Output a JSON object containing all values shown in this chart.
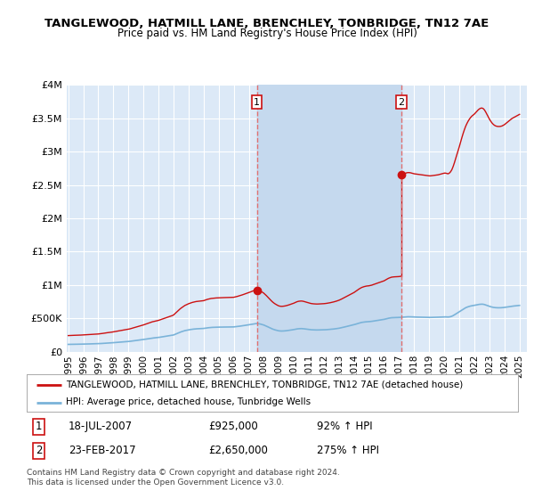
{
  "title": "TANGLEWOOD, HATMILL LANE, BRENCHLEY, TONBRIDGE, TN12 7AE",
  "subtitle": "Price paid vs. HM Land Registry's House Price Index (HPI)",
  "background_color": "#ffffff",
  "plot_bg_color": "#dce9f7",
  "shade_color": "#c5d9ee",
  "grid_color": "#ffffff",
  "ylim": [
    0,
    4000000
  ],
  "yticks": [
    0,
    500000,
    1000000,
    1500000,
    2000000,
    2500000,
    3000000,
    3500000,
    4000000
  ],
  "sale1_date": 2007.54,
  "sale1_price": 925000,
  "sale2_date": 2017.15,
  "sale2_price": 2650000,
  "legend_line1": "TANGLEWOOD, HATMILL LANE, BRENCHLEY, TONBRIDGE, TN12 7AE (detached house)",
  "legend_line2": "HPI: Average price, detached house, Tunbridge Wells",
  "hpi_color": "#7ab3d9",
  "price_color": "#cc1111",
  "vline_color": "#e07070",
  "footer": "Contains HM Land Registry data © Crown copyright and database right 2024.\nThis data is licensed under the Open Government Licence v3.0.",
  "hpi_data": [
    [
      1995.0,
      111000
    ],
    [
      1995.083,
      111500
    ],
    [
      1995.167,
      112000
    ],
    [
      1995.25,
      112200
    ],
    [
      1995.333,
      112500
    ],
    [
      1995.417,
      113000
    ],
    [
      1995.5,
      113200
    ],
    [
      1995.583,
      113500
    ],
    [
      1995.667,
      114000
    ],
    [
      1995.75,
      114200
    ],
    [
      1995.833,
      114500
    ],
    [
      1995.917,
      115000
    ],
    [
      1996.0,
      115500
    ],
    [
      1996.083,
      116000
    ],
    [
      1996.167,
      116500
    ],
    [
      1996.25,
      117000
    ],
    [
      1996.333,
      117500
    ],
    [
      1996.417,
      118000
    ],
    [
      1996.5,
      118500
    ],
    [
      1996.583,
      119000
    ],
    [
      1996.667,
      119500
    ],
    [
      1996.75,
      120000
    ],
    [
      1996.833,
      120500
    ],
    [
      1996.917,
      121000
    ],
    [
      1997.0,
      122000
    ],
    [
      1997.083,
      123000
    ],
    [
      1997.167,
      124000
    ],
    [
      1997.25,
      125000
    ],
    [
      1997.333,
      126500
    ],
    [
      1997.417,
      128000
    ],
    [
      1997.5,
      129000
    ],
    [
      1997.583,
      130500
    ],
    [
      1997.667,
      131500
    ],
    [
      1997.75,
      133000
    ],
    [
      1997.833,
      134000
    ],
    [
      1997.917,
      135000
    ],
    [
      1998.0,
      136500
    ],
    [
      1998.083,
      138000
    ],
    [
      1998.167,
      139500
    ],
    [
      1998.25,
      141000
    ],
    [
      1998.333,
      142500
    ],
    [
      1998.417,
      144000
    ],
    [
      1998.5,
      145000
    ],
    [
      1998.583,
      146500
    ],
    [
      1998.667,
      148000
    ],
    [
      1998.75,
      149500
    ],
    [
      1998.833,
      151000
    ],
    [
      1998.917,
      152500
    ],
    [
      1999.0,
      154000
    ],
    [
      1999.083,
      156500
    ],
    [
      1999.167,
      159000
    ],
    [
      1999.25,
      161500
    ],
    [
      1999.333,
      164000
    ],
    [
      1999.417,
      166500
    ],
    [
      1999.5,
      169000
    ],
    [
      1999.583,
      171500
    ],
    [
      1999.667,
      174000
    ],
    [
      1999.75,
      176500
    ],
    [
      1999.833,
      179000
    ],
    [
      1999.917,
      181500
    ],
    [
      2000.0,
      184000
    ],
    [
      2000.083,
      187000
    ],
    [
      2000.167,
      190000
    ],
    [
      2000.25,
      193000
    ],
    [
      2000.333,
      196000
    ],
    [
      2000.417,
      199000
    ],
    [
      2000.5,
      202000
    ],
    [
      2000.583,
      205000
    ],
    [
      2000.667,
      207000
    ],
    [
      2000.75,
      209000
    ],
    [
      2000.833,
      211000
    ],
    [
      2000.917,
      213000
    ],
    [
      2001.0,
      215000
    ],
    [
      2001.083,
      218000
    ],
    [
      2001.167,
      221000
    ],
    [
      2001.25,
      224000
    ],
    [
      2001.333,
      227000
    ],
    [
      2001.417,
      230000
    ],
    [
      2001.5,
      233000
    ],
    [
      2001.583,
      236000
    ],
    [
      2001.667,
      239000
    ],
    [
      2001.75,
      242000
    ],
    [
      2001.833,
      245000
    ],
    [
      2001.917,
      248000
    ],
    [
      2002.0,
      252000
    ],
    [
      2002.083,
      260000
    ],
    [
      2002.167,
      268000
    ],
    [
      2002.25,
      276000
    ],
    [
      2002.333,
      284000
    ],
    [
      2002.417,
      292000
    ],
    [
      2002.5,
      299000
    ],
    [
      2002.583,
      305000
    ],
    [
      2002.667,
      311000
    ],
    [
      2002.75,
      317000
    ],
    [
      2002.833,
      321000
    ],
    [
      2002.917,
      325000
    ],
    [
      2003.0,
      329000
    ],
    [
      2003.083,
      332000
    ],
    [
      2003.167,
      335000
    ],
    [
      2003.25,
      338000
    ],
    [
      2003.333,
      340000
    ],
    [
      2003.417,
      342000
    ],
    [
      2003.5,
      344000
    ],
    [
      2003.583,
      345000
    ],
    [
      2003.667,
      346000
    ],
    [
      2003.75,
      347000
    ],
    [
      2003.833,
      348000
    ],
    [
      2003.917,
      349000
    ],
    [
      2004.0,
      350000
    ],
    [
      2004.083,
      353000
    ],
    [
      2004.167,
      356000
    ],
    [
      2004.25,
      359000
    ],
    [
      2004.333,
      361000
    ],
    [
      2004.417,
      363000
    ],
    [
      2004.5,
      365000
    ],
    [
      2004.583,
      366000
    ],
    [
      2004.667,
      367000
    ],
    [
      2004.75,
      368000
    ],
    [
      2004.833,
      368500
    ],
    [
      2004.917,
      369000
    ],
    [
      2005.0,
      369500
    ],
    [
      2005.083,
      370000
    ],
    [
      2005.167,
      370300
    ],
    [
      2005.25,
      370600
    ],
    [
      2005.333,
      370800
    ],
    [
      2005.417,
      371000
    ],
    [
      2005.5,
      371200
    ],
    [
      2005.583,
      371500
    ],
    [
      2005.667,
      371800
    ],
    [
      2005.75,
      372000
    ],
    [
      2005.833,
      372300
    ],
    [
      2005.917,
      372600
    ],
    [
      2006.0,
      373000
    ],
    [
      2006.083,
      375000
    ],
    [
      2006.167,
      377000
    ],
    [
      2006.25,
      379500
    ],
    [
      2006.333,
      382000
    ],
    [
      2006.417,
      384500
    ],
    [
      2006.5,
      387000
    ],
    [
      2006.583,
      390000
    ],
    [
      2006.667,
      393000
    ],
    [
      2006.75,
      396000
    ],
    [
      2006.833,
      399000
    ],
    [
      2006.917,
      402000
    ],
    [
      2007.0,
      405000
    ],
    [
      2007.083,
      408500
    ],
    [
      2007.167,
      412000
    ],
    [
      2007.25,
      415500
    ],
    [
      2007.333,
      418500
    ],
    [
      2007.417,
      421000
    ],
    [
      2007.5,
      423000
    ],
    [
      2007.583,
      422000
    ],
    [
      2007.667,
      420000
    ],
    [
      2007.75,
      417000
    ],
    [
      2007.833,
      412000
    ],
    [
      2007.917,
      407000
    ],
    [
      2008.0,
      401000
    ],
    [
      2008.083,
      393000
    ],
    [
      2008.167,
      385000
    ],
    [
      2008.25,
      376000
    ],
    [
      2008.333,
      367000
    ],
    [
      2008.417,
      358000
    ],
    [
      2008.5,
      349000
    ],
    [
      2008.583,
      341000
    ],
    [
      2008.667,
      334000
    ],
    [
      2008.75,
      328000
    ],
    [
      2008.833,
      323000
    ],
    [
      2008.917,
      318000
    ],
    [
      2009.0,
      314000
    ],
    [
      2009.083,
      312000
    ],
    [
      2009.167,
      311000
    ],
    [
      2009.25,
      311500
    ],
    [
      2009.333,
      312500
    ],
    [
      2009.417,
      314000
    ],
    [
      2009.5,
      316000
    ],
    [
      2009.583,
      318500
    ],
    [
      2009.667,
      321000
    ],
    [
      2009.75,
      324000
    ],
    [
      2009.833,
      327000
    ],
    [
      2009.917,
      330000
    ],
    [
      2010.0,
      333000
    ],
    [
      2010.083,
      337000
    ],
    [
      2010.167,
      341000
    ],
    [
      2010.25,
      344000
    ],
    [
      2010.333,
      346000
    ],
    [
      2010.417,
      347000
    ],
    [
      2010.5,
      347500
    ],
    [
      2010.583,
      346500
    ],
    [
      2010.667,
      344500
    ],
    [
      2010.75,
      342000
    ],
    [
      2010.833,
      339500
    ],
    [
      2010.917,
      337000
    ],
    [
      2011.0,
      334500
    ],
    [
      2011.083,
      332000
    ],
    [
      2011.167,
      330000
    ],
    [
      2011.25,
      329000
    ],
    [
      2011.333,
      328000
    ],
    [
      2011.417,
      327500
    ],
    [
      2011.5,
      327000
    ],
    [
      2011.583,
      327000
    ],
    [
      2011.667,
      327500
    ],
    [
      2011.75,
      328000
    ],
    [
      2011.833,
      328500
    ],
    [
      2011.917,
      329000
    ],
    [
      2012.0,
      329500
    ],
    [
      2012.083,
      330500
    ],
    [
      2012.167,
      331500
    ],
    [
      2012.25,
      333000
    ],
    [
      2012.333,
      334500
    ],
    [
      2012.417,
      336000
    ],
    [
      2012.5,
      338000
    ],
    [
      2012.583,
      340000
    ],
    [
      2012.667,
      342000
    ],
    [
      2012.75,
      344500
    ],
    [
      2012.833,
      347000
    ],
    [
      2012.917,
      350000
    ],
    [
      2013.0,
      353000
    ],
    [
      2013.083,
      357000
    ],
    [
      2013.167,
      361000
    ],
    [
      2013.25,
      365500
    ],
    [
      2013.333,
      370000
    ],
    [
      2013.417,
      374500
    ],
    [
      2013.5,
      379000
    ],
    [
      2013.583,
      383500
    ],
    [
      2013.667,
      388000
    ],
    [
      2013.75,
      392500
    ],
    [
      2013.833,
      397000
    ],
    [
      2013.917,
      401500
    ],
    [
      2014.0,
      406000
    ],
    [
      2014.083,
      412000
    ],
    [
      2014.167,
      418000
    ],
    [
      2014.25,
      424000
    ],
    [
      2014.333,
      430000
    ],
    [
      2014.417,
      435000
    ],
    [
      2014.5,
      440000
    ],
    [
      2014.583,
      443000
    ],
    [
      2014.667,
      446000
    ],
    [
      2014.75,
      448000
    ],
    [
      2014.833,
      450000
    ],
    [
      2014.917,
      451000
    ],
    [
      2015.0,
      452000
    ],
    [
      2015.083,
      454000
    ],
    [
      2015.167,
      456000
    ],
    [
      2015.25,
      459000
    ],
    [
      2015.333,
      462000
    ],
    [
      2015.417,
      465000
    ],
    [
      2015.5,
      468000
    ],
    [
      2015.583,
      471000
    ],
    [
      2015.667,
      474000
    ],
    [
      2015.75,
      477000
    ],
    [
      2015.833,
      480000
    ],
    [
      2015.917,
      483000
    ],
    [
      2016.0,
      486000
    ],
    [
      2016.083,
      491000
    ],
    [
      2016.167,
      496000
    ],
    [
      2016.25,
      501000
    ],
    [
      2016.333,
      505000
    ],
    [
      2016.417,
      508000
    ],
    [
      2016.5,
      511000
    ],
    [
      2016.583,
      512000
    ],
    [
      2016.667,
      513000
    ],
    [
      2016.75,
      513500
    ],
    [
      2016.833,
      514000
    ],
    [
      2016.917,
      514500
    ],
    [
      2017.0,
      515000
    ],
    [
      2017.083,
      516500
    ],
    [
      2017.167,
      518000
    ],
    [
      2017.25,
      519500
    ],
    [
      2017.333,
      521000
    ],
    [
      2017.417,
      522500
    ],
    [
      2017.5,
      524000
    ],
    [
      2017.583,
      524500
    ],
    [
      2017.667,
      524500
    ],
    [
      2017.75,
      524000
    ],
    [
      2017.833,
      523000
    ],
    [
      2017.917,
      522000
    ],
    [
      2018.0,
      521000
    ],
    [
      2018.083,
      520500
    ],
    [
      2018.167,
      520000
    ],
    [
      2018.25,
      519500
    ],
    [
      2018.333,
      519000
    ],
    [
      2018.417,
      518500
    ],
    [
      2018.5,
      518000
    ],
    [
      2018.583,
      517500
    ],
    [
      2018.667,
      517000
    ],
    [
      2018.75,
      516500
    ],
    [
      2018.833,
      516000
    ],
    [
      2018.917,
      515500
    ],
    [
      2019.0,
      515000
    ],
    [
      2019.083,
      515000
    ],
    [
      2019.167,
      515500
    ],
    [
      2019.25,
      516000
    ],
    [
      2019.333,
      516500
    ],
    [
      2019.417,
      517000
    ],
    [
      2019.5,
      517500
    ],
    [
      2019.583,
      518000
    ],
    [
      2019.667,
      519000
    ],
    [
      2019.75,
      520000
    ],
    [
      2019.833,
      521000
    ],
    [
      2019.917,
      522000
    ],
    [
      2020.0,
      523000
    ],
    [
      2020.083,
      523000
    ],
    [
      2020.167,
      522000
    ],
    [
      2020.25,
      521000
    ],
    [
      2020.333,
      523000
    ],
    [
      2020.417,
      527000
    ],
    [
      2020.5,
      533000
    ],
    [
      2020.583,
      542000
    ],
    [
      2020.667,
      553000
    ],
    [
      2020.75,
      565000
    ],
    [
      2020.833,
      577000
    ],
    [
      2020.917,
      589000
    ],
    [
      2021.0,
      601000
    ],
    [
      2021.083,
      614000
    ],
    [
      2021.167,
      627000
    ],
    [
      2021.25,
      639000
    ],
    [
      2021.333,
      650000
    ],
    [
      2021.417,
      660000
    ],
    [
      2021.5,
      668000
    ],
    [
      2021.583,
      675000
    ],
    [
      2021.667,
      681000
    ],
    [
      2021.75,
      686000
    ],
    [
      2021.833,
      690000
    ],
    [
      2021.917,
      693000
    ],
    [
      2022.0,
      696000
    ],
    [
      2022.083,
      700000
    ],
    [
      2022.167,
      704000
    ],
    [
      2022.25,
      708000
    ],
    [
      2022.333,
      711000
    ],
    [
      2022.417,
      713000
    ],
    [
      2022.5,
      713500
    ],
    [
      2022.583,
      712000
    ],
    [
      2022.667,
      708000
    ],
    [
      2022.75,
      702000
    ],
    [
      2022.833,
      695000
    ],
    [
      2022.917,
      688000
    ],
    [
      2023.0,
      681000
    ],
    [
      2023.083,
      675000
    ],
    [
      2023.167,
      670000
    ],
    [
      2023.25,
      666000
    ],
    [
      2023.333,
      663000
    ],
    [
      2023.417,
      661000
    ],
    [
      2023.5,
      660000
    ],
    [
      2023.583,
      659500
    ],
    [
      2023.667,
      659500
    ],
    [
      2023.75,
      660000
    ],
    [
      2023.833,
      661000
    ],
    [
      2023.917,
      663000
    ],
    [
      2024.0,
      665000
    ],
    [
      2024.083,
      668000
    ],
    [
      2024.167,
      671000
    ],
    [
      2024.25,
      674000
    ],
    [
      2024.333,
      677000
    ],
    [
      2024.417,
      680000
    ],
    [
      2024.5,
      683000
    ],
    [
      2024.583,
      685000
    ],
    [
      2024.667,
      687000
    ],
    [
      2024.75,
      689000
    ],
    [
      2024.833,
      691000
    ],
    [
      2024.917,
      693000
    ],
    [
      2025.0,
      695000
    ]
  ],
  "xmin": 1994.9,
  "xmax": 2025.5,
  "xticks": [
    1995,
    1996,
    1997,
    1998,
    1999,
    2000,
    2001,
    2002,
    2003,
    2004,
    2005,
    2006,
    2007,
    2008,
    2009,
    2010,
    2011,
    2012,
    2013,
    2014,
    2015,
    2016,
    2017,
    2018,
    2019,
    2020,
    2021,
    2022,
    2023,
    2024,
    2025
  ]
}
